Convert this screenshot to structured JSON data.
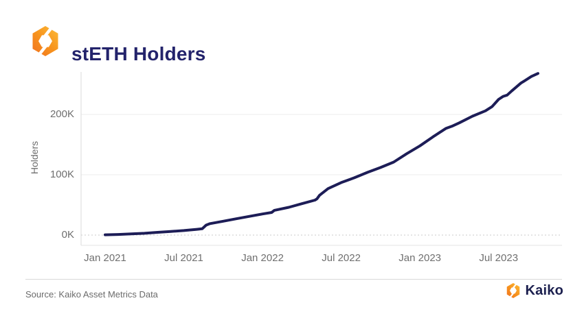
{
  "header": {
    "title": "stETH Holders",
    "logo": "kaiko-mark-icon"
  },
  "chart_data": {
    "type": "line",
    "title": "stETH Holders",
    "ylabel": "Holders",
    "xlabel": "",
    "ylim": [
      0,
      280
    ],
    "x_range": [
      "Jan 2021",
      "Oct 2023"
    ],
    "grid": "horizontal, dotted zero baseline",
    "legend": "none",
    "x_ticks": [
      {
        "label": "Jan 2021",
        "month": 0
      },
      {
        "label": "Jul 2021",
        "month": 6
      },
      {
        "label": "Jan 2022",
        "month": 12
      },
      {
        "label": "Jul 2022",
        "month": 18
      },
      {
        "label": "Jan 2023",
        "month": 24
      },
      {
        "label": "Jul 2023",
        "month": 30
      }
    ],
    "y_ticks": [
      {
        "label": "0K",
        "value": 0
      },
      {
        "label": "100K",
        "value": 100
      },
      {
        "label": "200K",
        "value": 200
      }
    ],
    "series": [
      {
        "name": "stETH Holders",
        "unit": "thousands of holders",
        "color": "#1d1d57",
        "points": [
          [
            0,
            0.5
          ],
          [
            1,
            1
          ],
          [
            2,
            2
          ],
          [
            3,
            3
          ],
          [
            4,
            4.5
          ],
          [
            5,
            6
          ],
          [
            6,
            7.5
          ],
          [
            7,
            9.5
          ],
          [
            7.4,
            10.5
          ],
          [
            7.7,
            16.5
          ],
          [
            8,
            19
          ],
          [
            9,
            23
          ],
          [
            10,
            27
          ],
          [
            11,
            31
          ],
          [
            12,
            35
          ],
          [
            12.7,
            37.5
          ],
          [
            12.9,
            41
          ],
          [
            14,
            46
          ],
          [
            15,
            52
          ],
          [
            16,
            58
          ],
          [
            16.15,
            60
          ],
          [
            16.35,
            66
          ],
          [
            17,
            77
          ],
          [
            18,
            87
          ],
          [
            19,
            95
          ],
          [
            20,
            104
          ],
          [
            21,
            112
          ],
          [
            22,
            121
          ],
          [
            23,
            135
          ],
          [
            24,
            148
          ],
          [
            25,
            163
          ],
          [
            26,
            177
          ],
          [
            26.5,
            181
          ],
          [
            27,
            186
          ],
          [
            28,
            197
          ],
          [
            29,
            206
          ],
          [
            29.5,
            213
          ],
          [
            30,
            225
          ],
          [
            30.35,
            230
          ],
          [
            30.65,
            232
          ],
          [
            31,
            239
          ],
          [
            31.7,
            252
          ],
          [
            32,
            256
          ],
          [
            32.5,
            263
          ],
          [
            33,
            268
          ]
        ]
      }
    ]
  },
  "footer": {
    "source": "Source: Kaiko Asset Metrics Data",
    "brand": "Kaiko"
  },
  "colors": {
    "line": "#1d1d57",
    "title": "#23236b",
    "brand_text": "#1b1f4e",
    "axis_text": "#6e6e6e",
    "grid": "#ededed",
    "zero_line": "#c8c8c8",
    "axis_line": "#d9d9d9",
    "divider": "#d8d8d8",
    "logo_orange_dark": "#ef6b21",
    "logo_orange": "#f7941d",
    "logo_orange_light": "#fdc43f",
    "background": "#ffffff"
  }
}
